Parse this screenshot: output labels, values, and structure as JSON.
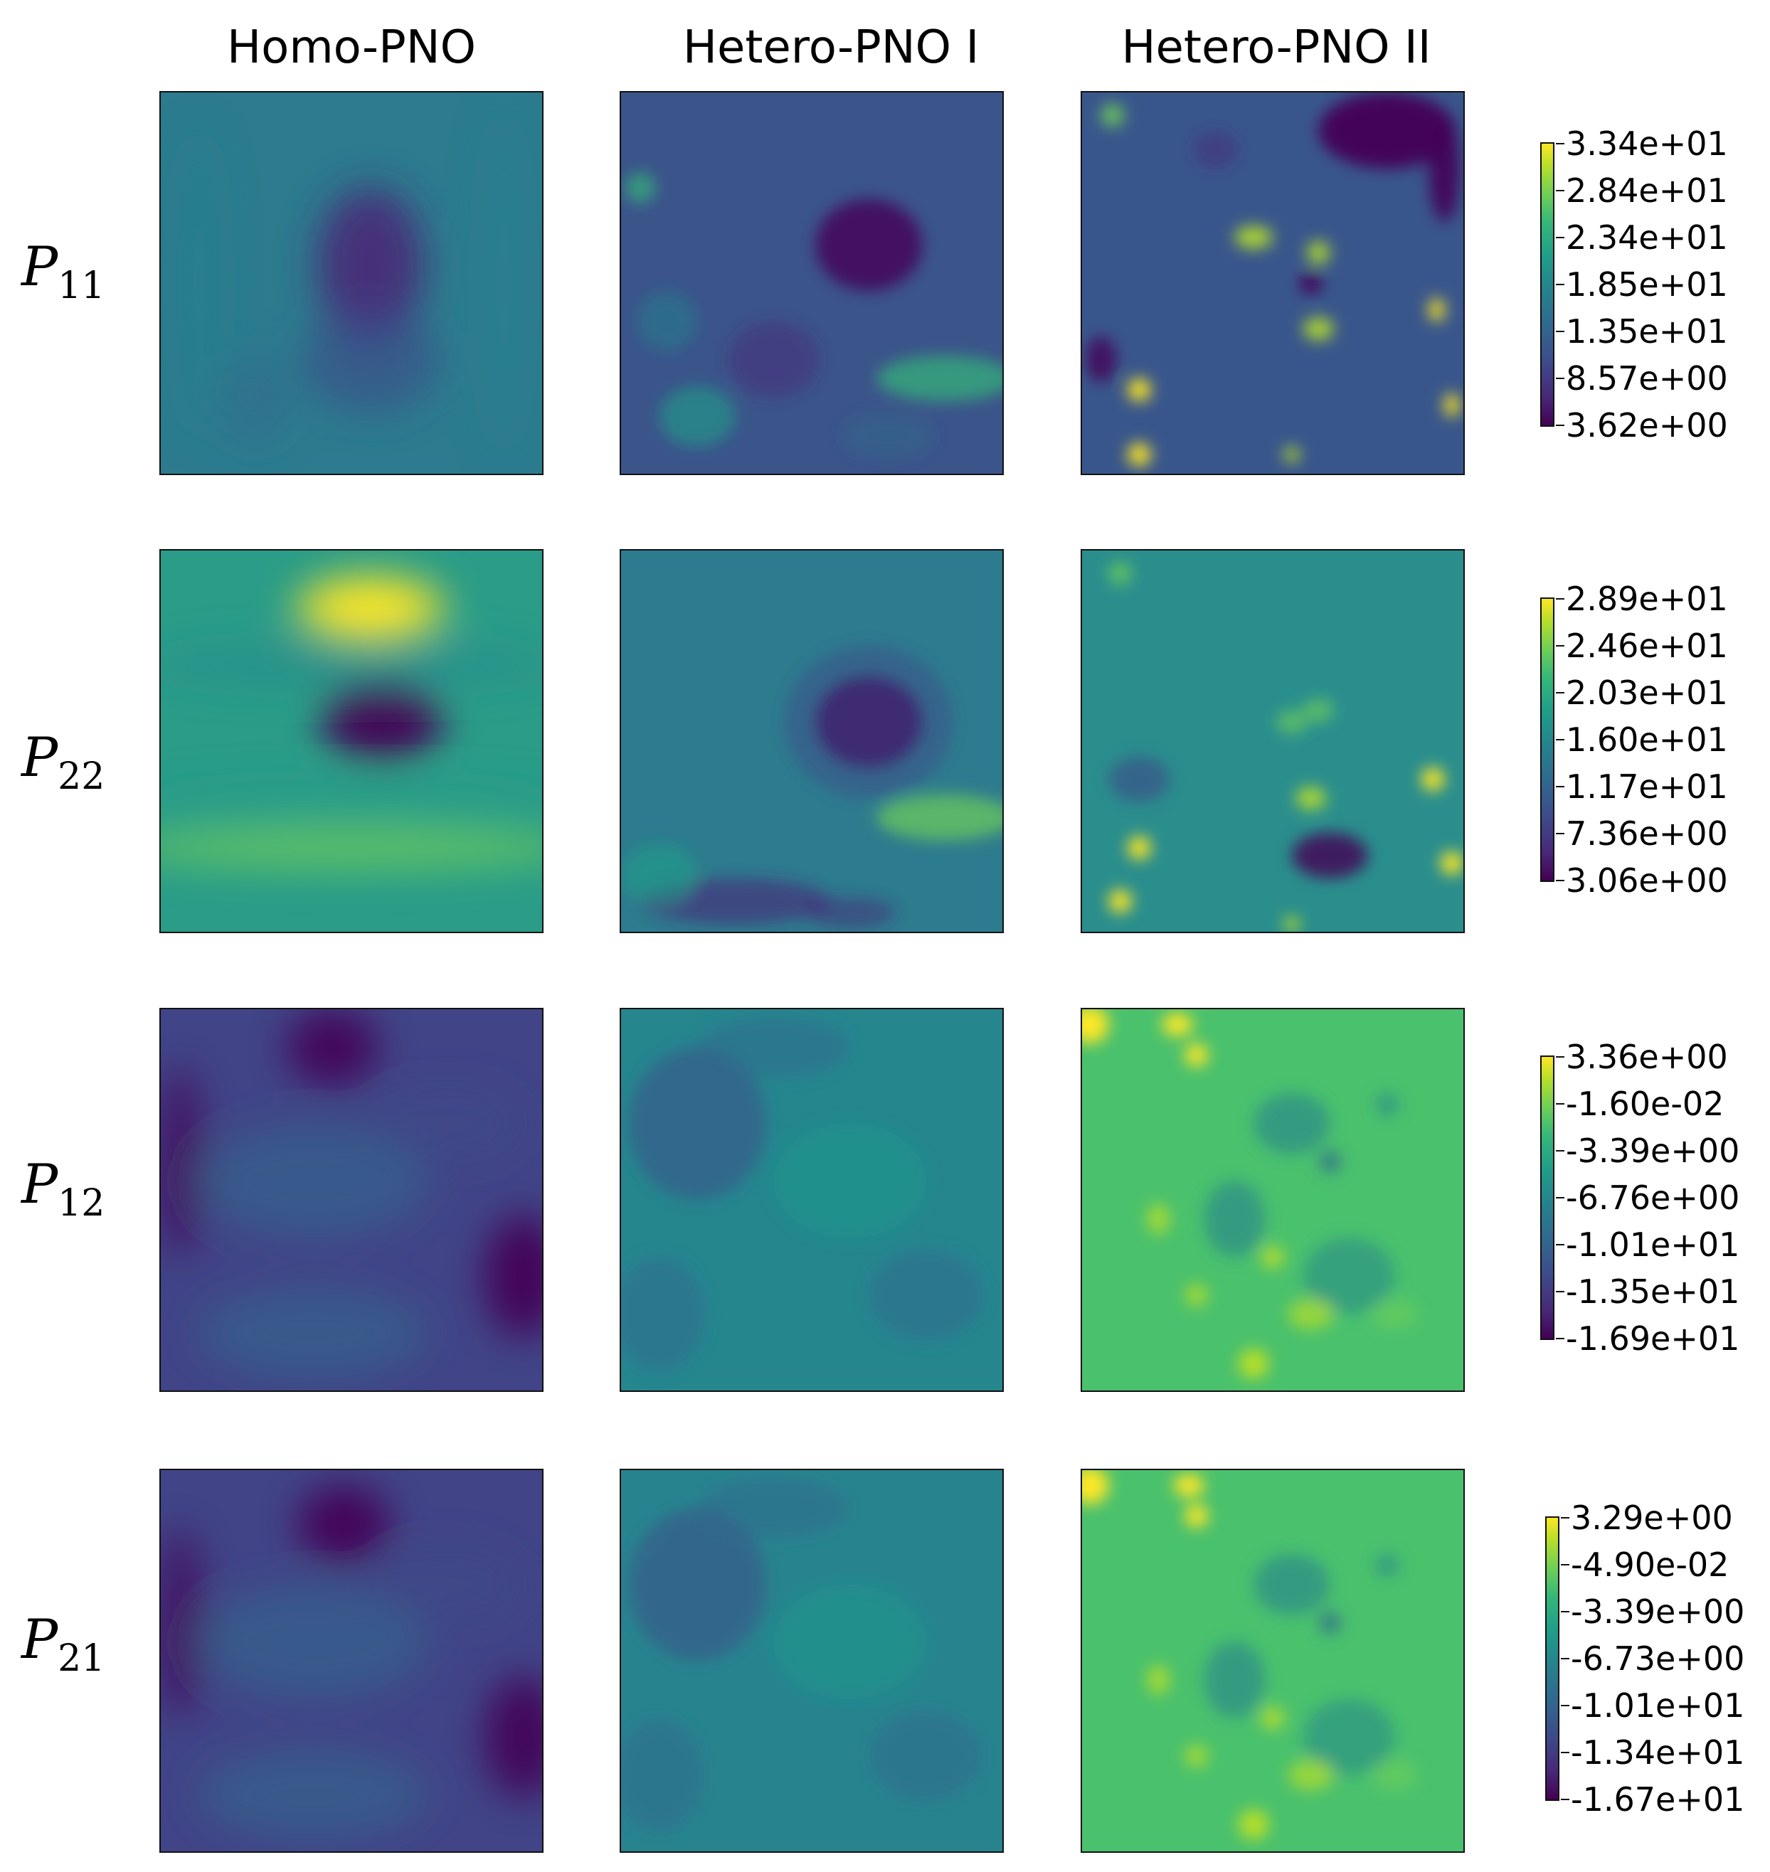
{
  "columns": [
    "Homo-PNO",
    "Hetero-PNO I",
    "Hetero-PNO II"
  ],
  "rows": [
    {
      "symbol": "P",
      "subscript": "11"
    },
    {
      "symbol": "P",
      "subscript": "22"
    },
    {
      "symbol": "P",
      "subscript": "12"
    },
    {
      "symbol": "P",
      "subscript": "21"
    }
  ],
  "colormap": "viridis",
  "colormap_stops": [
    "#440154",
    "#482878",
    "#3e4a89",
    "#31688e",
    "#26828e",
    "#1f9e89",
    "#35b779",
    "#6ece58",
    "#b5de2b",
    "#fde725"
  ],
  "chart_data": [
    {
      "type": "heatmap",
      "row": "P11",
      "colorbar": {
        "min": 3.62,
        "max": 33.4,
        "ticks": [
          "3.34e+01",
          "2.84e+01",
          "2.34e+01",
          "1.85e+01",
          "1.35e+01",
          "8.57e+00",
          "3.62e+00"
        ]
      }
    },
    {
      "type": "heatmap",
      "row": "P22",
      "colorbar": {
        "min": 3.06,
        "max": 28.9,
        "ticks": [
          "2.89e+01",
          "2.46e+01",
          "2.03e+01",
          "1.60e+01",
          "1.17e+01",
          "7.36e+00",
          "3.06e+00"
        ]
      }
    },
    {
      "type": "heatmap",
      "row": "P12",
      "colorbar": {
        "min": -16.9,
        "max": 3.36,
        "ticks": [
          "3.36e+00",
          "-1.60e-02",
          "-3.39e+00",
          "-6.76e+00",
          "-1.01e+01",
          "-1.35e+01",
          "-1.69e+01"
        ]
      }
    },
    {
      "type": "heatmap",
      "row": "P21",
      "colorbar": {
        "min": -16.7,
        "max": 3.29,
        "ticks": [
          "3.29e+00",
          "-4.90e-02",
          "-3.39e+00",
          "-6.73e+00",
          "-1.01e+01",
          "-1.34e+01",
          "-1.67e+01"
        ]
      }
    }
  ]
}
